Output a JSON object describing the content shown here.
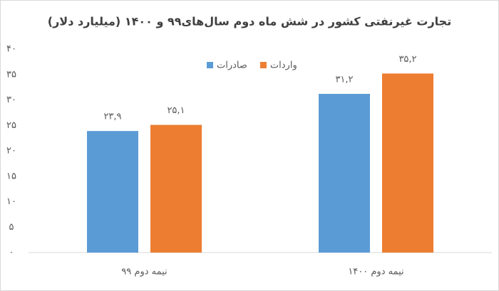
{
  "chart_data": {
    "type": "bar",
    "title": "تجارت غیرنفتی کشور در شش ماه دوم سال‌های۹۹ و ۱۴۰۰ (میلیارد دلار)",
    "categories": [
      "نیمه دوم ۹۹",
      "نیمه دوم ۱۴۰۰"
    ],
    "series": [
      {
        "name": "صادرات",
        "color": "#5b9bd5",
        "values": [
          23.9,
          31.2
        ],
        "value_labels": [
          "۲۳,۹",
          "۳۱,۲"
        ]
      },
      {
        "name": "واردات",
        "color": "#ed7d31",
        "values": [
          25.1,
          35.2
        ],
        "value_labels": [
          "۲۵,۱",
          "۳۵,۲"
        ]
      }
    ],
    "ylim": [
      0,
      40
    ],
    "yticks": [
      {
        "value": 0,
        "label": "۰"
      },
      {
        "value": 5,
        "label": "۵"
      },
      {
        "value": 10,
        "label": "۱۰"
      },
      {
        "value": 15,
        "label": "۱۵"
      },
      {
        "value": 20,
        "label": "۲۰"
      },
      {
        "value": 25,
        "label": "۲۵"
      },
      {
        "value": 30,
        "label": "۳۰"
      },
      {
        "value": 35,
        "label": "۳۵"
      },
      {
        "value": 40,
        "label": "۴۰"
      }
    ],
    "grid": false,
    "legend": "top"
  }
}
